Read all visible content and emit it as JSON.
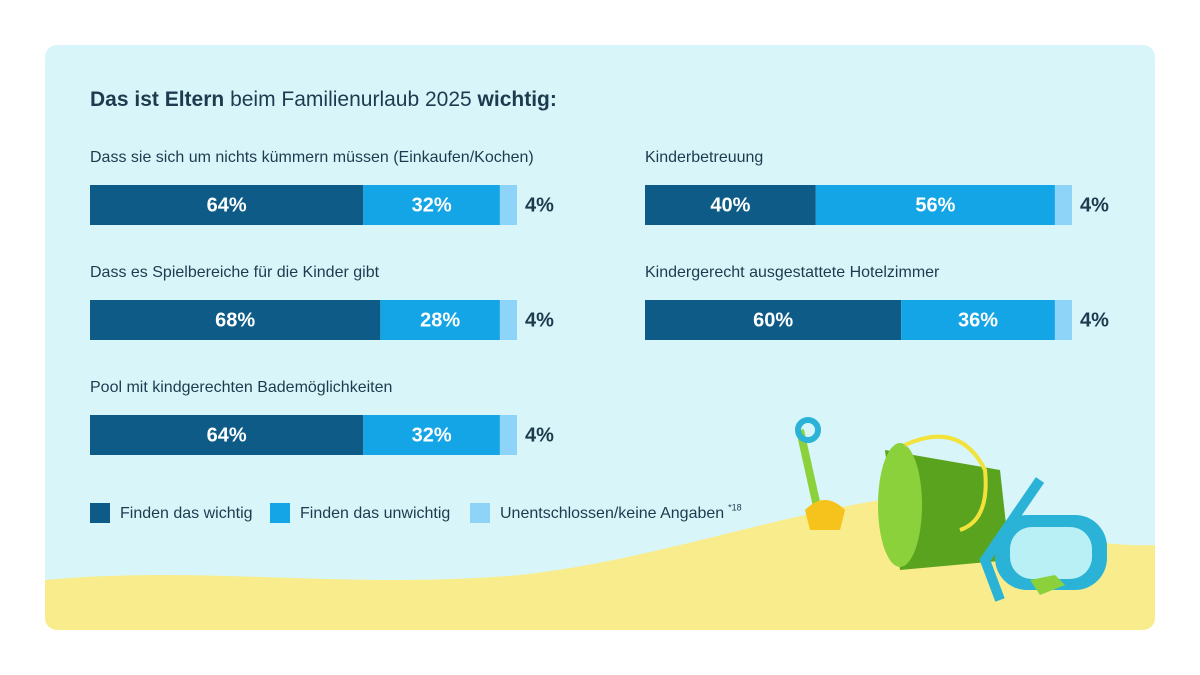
{
  "chart_data": {
    "type": "bar",
    "orientation": "horizontal",
    "stacked": true,
    "title": [
      "Das ist Eltern",
      "beim Familienurlaub 2025",
      "wichtig:"
    ],
    "categories": [
      "Dass sie sich um nichts kümmern müssen (Einkaufen/Kochen)",
      "Dass es Spielbereiche für die Kinder gibt",
      "Pool mit kindgerechten Bademöglichkeiten",
      "Kinderbetreuung",
      "Kindergerecht ausgestattete Hotelzimmer"
    ],
    "xlim": [
      0,
      100
    ],
    "series": [
      {
        "name": "Finden das wichtig",
        "color": "#0d5b86",
        "values": [
          64,
          68,
          64,
          40,
          60
        ],
        "value_labels": [
          "64%",
          "68%",
          "64%",
          "40%",
          "60%"
        ]
      },
      {
        "name": "Finden das unwichtig",
        "color": "#13a5e6",
        "values": [
          32,
          28,
          32,
          56,
          36
        ],
        "value_labels": [
          "32%",
          "28%",
          "32%",
          "56%",
          "36%"
        ]
      },
      {
        "name": "Unentschlossen/keine Angaben",
        "color": "#8ed4f8",
        "values": [
          4,
          4,
          4,
          4,
          4
        ],
        "value_labels": [
          "4%",
          "4%",
          "4%",
          "4%",
          "4%"
        ]
      }
    ],
    "note": "*18"
  }
}
